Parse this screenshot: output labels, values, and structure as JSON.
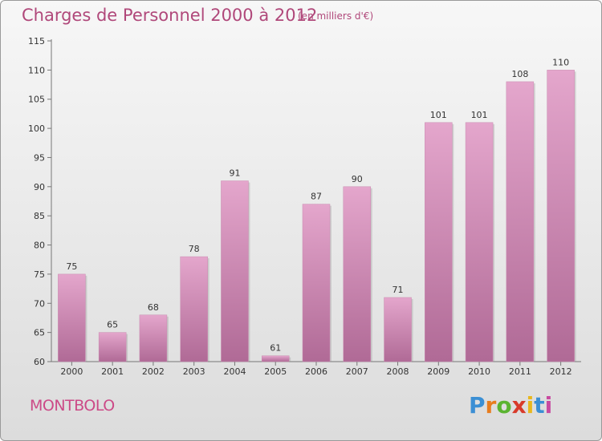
{
  "header": {
    "title": "Charges de Personnel 2000 à 2012",
    "subtitle": "(en milliers d'€)"
  },
  "footer": {
    "commune": "MONTBOLO",
    "logo_letters": [
      "P",
      "r",
      "o",
      "x",
      "i",
      "t",
      "i"
    ],
    "logo_colors": [
      "#3b8fd4",
      "#e87d1e",
      "#5bb431",
      "#d83a2a",
      "#e8b71e",
      "#3b8fd4",
      "#c84aa0"
    ]
  },
  "chart_data": {
    "type": "bar",
    "categories": [
      "2000",
      "2001",
      "2002",
      "2003",
      "2004",
      "2005",
      "2006",
      "2007",
      "2008",
      "2009",
      "2010",
      "2011",
      "2012"
    ],
    "values": [
      75,
      65,
      68,
      78,
      91,
      61,
      87,
      90,
      71,
      101,
      101,
      108,
      110
    ],
    "data_labels": [
      "75",
      "65",
      "68",
      "78",
      "91",
      "61",
      "87",
      "90",
      "71",
      "101",
      "101",
      "108",
      "110"
    ],
    "yticks": [
      "60",
      "65",
      "70",
      "75",
      "80",
      "85",
      "90",
      "95",
      "100",
      "105",
      "110",
      "115"
    ],
    "ylim": [
      60,
      115
    ],
    "grid": false,
    "bar_color_top": "#e4a6cc",
    "bar_color_bottom": "#b06a96"
  }
}
